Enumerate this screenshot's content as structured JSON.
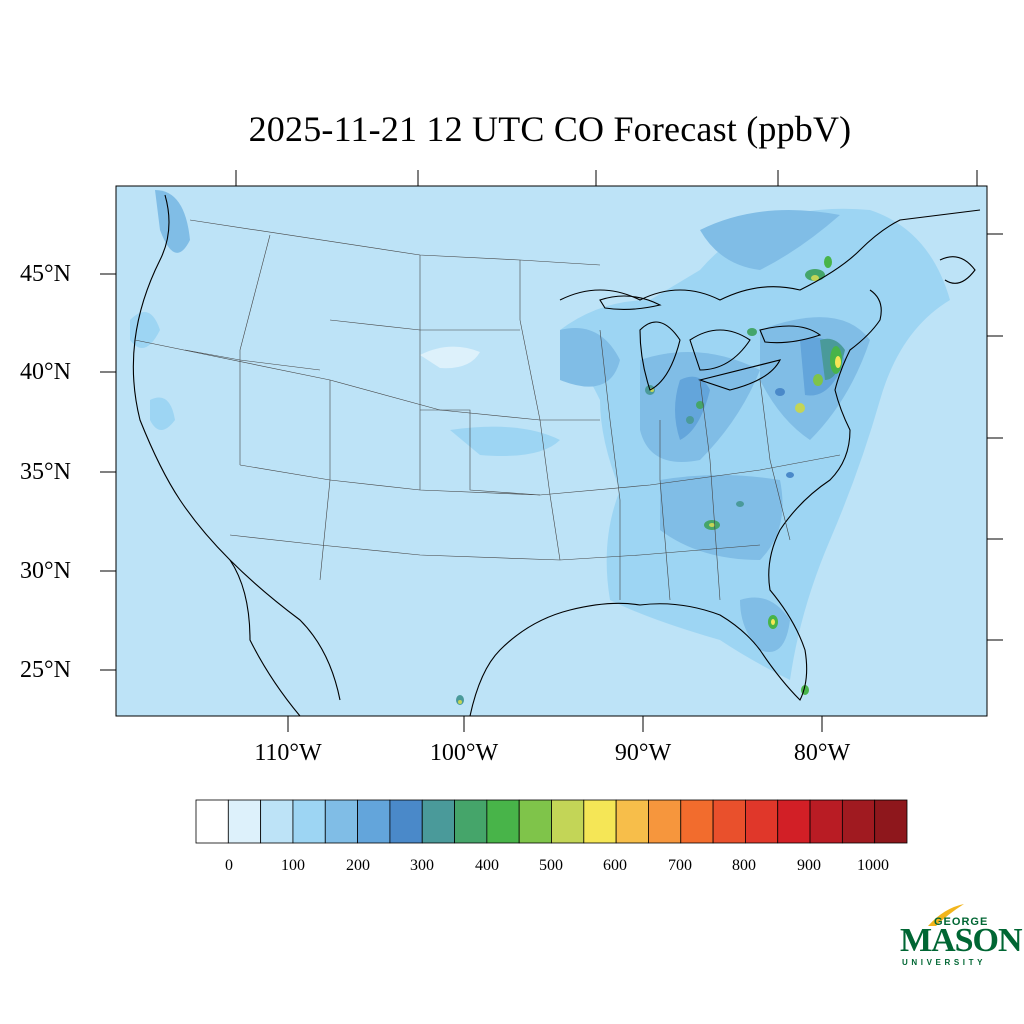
{
  "title": "2025-11-21 12 UTC CO Forecast (ppbV)",
  "map": {
    "lat_labels": [
      "45°N",
      "40°N",
      "35°N",
      "30°N",
      "25°N"
    ],
    "lon_labels": [
      "110°W",
      "100°W",
      "90°W",
      "80°W"
    ],
    "background_level_color": "#bde3f7",
    "coastline_color": "#000000",
    "state_border_color": "#444444"
  },
  "colorbar": {
    "tick_labels": [
      "0",
      "100",
      "200",
      "300",
      "400",
      "500",
      "600",
      "700",
      "800",
      "900",
      "1000"
    ],
    "colors": [
      "#ffffff",
      "#ddf1fb",
      "#bde3f7",
      "#9dd5f3",
      "#80bde6",
      "#63a5db",
      "#4a89c9",
      "#4a9a9a",
      "#45a56a",
      "#48b449",
      "#7fc44a",
      "#c3d557",
      "#f5e656",
      "#f7be4a",
      "#f6963d",
      "#f26c2d",
      "#e9502c",
      "#e0372a",
      "#d21f26",
      "#b91c24",
      "#a01a20",
      "#8e171c"
    ]
  },
  "logo": {
    "line1": "GEORGE",
    "line2": "MASON",
    "line3": "UNIVERSITY"
  }
}
